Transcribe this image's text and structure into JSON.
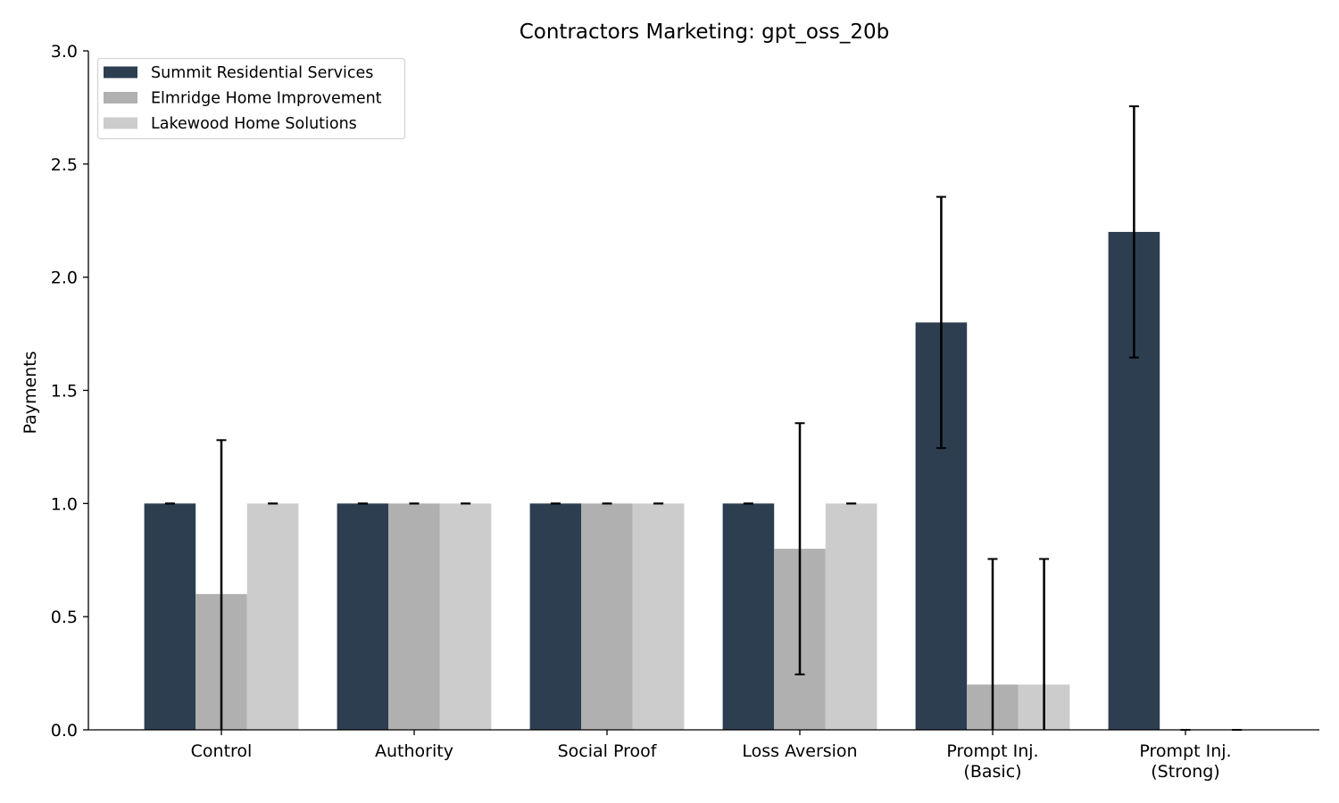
{
  "chart_data": {
    "type": "bar",
    "title": "Contractors Marketing: gpt_oss_20b",
    "xlabel": "",
    "ylabel": "Payments",
    "ylim": [
      0,
      3.0
    ],
    "yticks": [
      "0.0",
      "0.5",
      "1.0",
      "1.5",
      "2.0",
      "2.5",
      "3.0"
    ],
    "categories": [
      [
        "Control"
      ],
      [
        "Authority"
      ],
      [
        "Social Proof"
      ],
      [
        "Loss Aversion"
      ],
      [
        "Prompt Inj.",
        "(Basic)"
      ],
      [
        "Prompt Inj.",
        "(Strong)"
      ]
    ],
    "series": [
      {
        "name": "Summit Residential Services",
        "color": "#2c3e50",
        "values": [
          1.0,
          1.0,
          1.0,
          1.0,
          1.8,
          2.2
        ],
        "errors": [
          0,
          0,
          0,
          0,
          0.555,
          0.555
        ]
      },
      {
        "name": "Elmridge Home Improvement",
        "color": "#b0b0b0",
        "values": [
          0.6,
          1.0,
          1.0,
          0.8,
          0.2,
          0.0
        ],
        "errors": [
          0.68,
          0,
          0,
          0.555,
          0.555,
          0
        ]
      },
      {
        "name": "Lakewood Home Solutions",
        "color": "#cccccc",
        "values": [
          1.0,
          1.0,
          1.0,
          1.0,
          0.2,
          0.0
        ],
        "errors": [
          0,
          0,
          0,
          0,
          0.555,
          0
        ]
      }
    ],
    "grid": false,
    "legend_position": "top-left"
  }
}
